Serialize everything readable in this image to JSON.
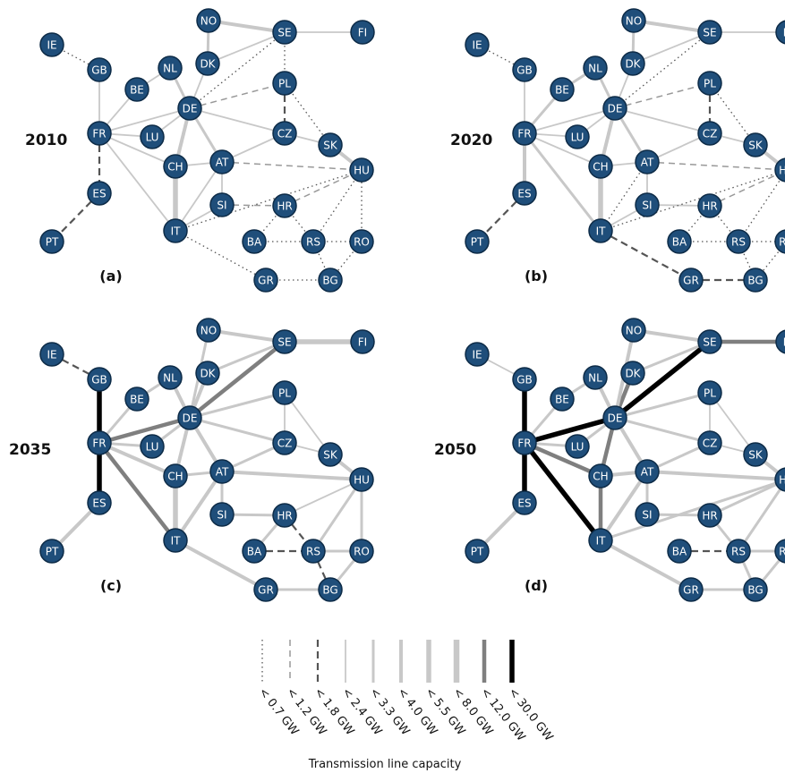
{
  "nodes": [
    "IE",
    "GB",
    "NO",
    "SE",
    "FI",
    "DK",
    "NL",
    "BE",
    "DE",
    "PL",
    "FR",
    "LU",
    "CZ",
    "SK",
    "CH",
    "AT",
    "HU",
    "ES",
    "SI",
    "HR",
    "IT",
    "BA",
    "RS",
    "RO",
    "PT",
    "GR",
    "BG"
  ],
  "panels": [
    {
      "id": "a",
      "year": "2010",
      "label": "(a)",
      "edges": [
        [
          "IE",
          "GB",
          0
        ],
        [
          "GB",
          "FR",
          3
        ],
        [
          "FR",
          "ES",
          2
        ],
        [
          "ES",
          "PT",
          2
        ],
        [
          "FR",
          "BE",
          3
        ],
        [
          "BE",
          "NL",
          3
        ],
        [
          "NL",
          "DE",
          4
        ],
        [
          "FR",
          "DE",
          3
        ],
        [
          "FR",
          "LU",
          3
        ],
        [
          "FR",
          "CH",
          3
        ],
        [
          "FR",
          "IT",
          3
        ],
        [
          "DE",
          "LU",
          3
        ],
        [
          "DE",
          "CH",
          5
        ],
        [
          "DE",
          "AT",
          4
        ],
        [
          "DE",
          "CZ",
          3
        ],
        [
          "DE",
          "PL",
          1
        ],
        [
          "DE",
          "DK",
          3
        ],
        [
          "DE",
          "SE",
          0
        ],
        [
          "NO",
          "DK",
          4
        ],
        [
          "NO",
          "SE",
          5
        ],
        [
          "DK",
          "SE",
          3
        ],
        [
          "SE",
          "FI",
          3
        ],
        [
          "SE",
          "PL",
          0
        ],
        [
          "PL",
          "CZ",
          2
        ],
        [
          "PL",
          "SK",
          0
        ],
        [
          "CZ",
          "SK",
          3
        ],
        [
          "CZ",
          "AT",
          3
        ],
        [
          "SK",
          "HU",
          5
        ],
        [
          "AT",
          "HU",
          1
        ],
        [
          "AT",
          "CH",
          3
        ],
        [
          "AT",
          "IT",
          3
        ],
        [
          "AT",
          "SI",
          3
        ],
        [
          "CH",
          "IT",
          6
        ],
        [
          "SI",
          "IT",
          3
        ],
        [
          "SI",
          "HR",
          1
        ],
        [
          "HR",
          "HU",
          1
        ],
        [
          "HR",
          "BA",
          0
        ],
        [
          "HR",
          "RS",
          0
        ],
        [
          "BA",
          "RS",
          0
        ],
        [
          "RS",
          "HU",
          0
        ],
        [
          "RS",
          "RO",
          0
        ],
        [
          "RO",
          "HU",
          0
        ],
        [
          "RS",
          "BG",
          0
        ],
        [
          "RO",
          "BG",
          0
        ],
        [
          "IT",
          "GR",
          0
        ],
        [
          "GR",
          "BG",
          0
        ],
        [
          "IT",
          "HU",
          0
        ]
      ]
    },
    {
      "id": "b",
      "year": "2020",
      "label": "(b)",
      "edges": [
        [
          "IE",
          "GB",
          0
        ],
        [
          "GB",
          "FR",
          3
        ],
        [
          "FR",
          "ES",
          5
        ],
        [
          "ES",
          "PT",
          2
        ],
        [
          "FR",
          "BE",
          4
        ],
        [
          "BE",
          "NL",
          4
        ],
        [
          "NL",
          "DE",
          4
        ],
        [
          "FR",
          "DE",
          3
        ],
        [
          "FR",
          "LU",
          3
        ],
        [
          "FR",
          "CH",
          3
        ],
        [
          "FR",
          "IT",
          4
        ],
        [
          "DE",
          "LU",
          3
        ],
        [
          "DE",
          "CH",
          5
        ],
        [
          "DE",
          "AT",
          4
        ],
        [
          "DE",
          "CZ",
          3
        ],
        [
          "DE",
          "PL",
          1
        ],
        [
          "DE",
          "DK",
          3
        ],
        [
          "DE",
          "SE",
          0
        ],
        [
          "NO",
          "DK",
          4
        ],
        [
          "NO",
          "SE",
          5
        ],
        [
          "DK",
          "SE",
          3
        ],
        [
          "SE",
          "FI",
          3
        ],
        [
          "PL",
          "CZ",
          2
        ],
        [
          "PL",
          "SK",
          0
        ],
        [
          "CZ",
          "SK",
          3
        ],
        [
          "CZ",
          "AT",
          3
        ],
        [
          "SK",
          "HU",
          5
        ],
        [
          "AT",
          "HU",
          1
        ],
        [
          "AT",
          "CH",
          3
        ],
        [
          "AT",
          "IT",
          0
        ],
        [
          "AT",
          "SI",
          3
        ],
        [
          "CH",
          "IT",
          6
        ],
        [
          "SI",
          "IT",
          3
        ],
        [
          "SI",
          "HR",
          3
        ],
        [
          "HR",
          "HU",
          1
        ],
        [
          "HR",
          "BA",
          0
        ],
        [
          "HR",
          "RS",
          0
        ],
        [
          "BA",
          "RS",
          0
        ],
        [
          "RS",
          "HU",
          0
        ],
        [
          "RS",
          "RO",
          0
        ],
        [
          "RO",
          "HU",
          0
        ],
        [
          "RS",
          "BG",
          0
        ],
        [
          "RO",
          "BG",
          0
        ],
        [
          "IT",
          "GR",
          2
        ],
        [
          "GR",
          "BG",
          2
        ],
        [
          "IT",
          "HU",
          0
        ]
      ]
    },
    {
      "id": "c",
      "year": "2035",
      "label": "(c)",
      "edges": [
        [
          "IE",
          "GB",
          2
        ],
        [
          "GB",
          "FR",
          9
        ],
        [
          "FR",
          "ES",
          9
        ],
        [
          "ES",
          "PT",
          5
        ],
        [
          "FR",
          "BE",
          4
        ],
        [
          "BE",
          "NL",
          4
        ],
        [
          "NL",
          "DE",
          5
        ],
        [
          "FR",
          "DE",
          8
        ],
        [
          "FR",
          "LU",
          4
        ],
        [
          "FR",
          "CH",
          5
        ],
        [
          "FR",
          "IT",
          8
        ],
        [
          "DE",
          "LU",
          4
        ],
        [
          "DE",
          "CH",
          5
        ],
        [
          "DE",
          "AT",
          5
        ],
        [
          "DE",
          "CZ",
          4
        ],
        [
          "DE",
          "PL",
          4
        ],
        [
          "DE",
          "DK",
          5
        ],
        [
          "DE",
          "SE",
          8
        ],
        [
          "DE",
          "NO",
          4
        ],
        [
          "NO",
          "SE",
          5
        ],
        [
          "DK",
          "SE",
          4
        ],
        [
          "SE",
          "FI",
          6
        ],
        [
          "PL",
          "CZ",
          3
        ],
        [
          "PL",
          "SK",
          3
        ],
        [
          "CZ",
          "SK",
          3
        ],
        [
          "CZ",
          "AT",
          4
        ],
        [
          "SK",
          "HU",
          5
        ],
        [
          "AT",
          "HU",
          5
        ],
        [
          "AT",
          "CH",
          4
        ],
        [
          "AT",
          "IT",
          5
        ],
        [
          "AT",
          "SI",
          4
        ],
        [
          "CH",
          "IT",
          6
        ],
        [
          "SI",
          "HR",
          4
        ],
        [
          "HR",
          "HU",
          3
        ],
        [
          "HR",
          "RS",
          2
        ],
        [
          "BA",
          "RS",
          2
        ],
        [
          "RS",
          "HU",
          4
        ],
        [
          "RS",
          "RO",
          4
        ],
        [
          "RO",
          "HU",
          4
        ],
        [
          "RS",
          "BG",
          2
        ],
        [
          "RO",
          "BG",
          4
        ],
        [
          "IT",
          "GR",
          5
        ],
        [
          "GR",
          "BG",
          4
        ],
        [
          "HR",
          "BA",
          4
        ]
      ]
    },
    {
      "id": "d",
      "year": "2050",
      "label": "(d)",
      "edges": [
        [
          "IE",
          "GB",
          3
        ],
        [
          "GB",
          "FR",
          9
        ],
        [
          "FR",
          "ES",
          9
        ],
        [
          "ES",
          "PT",
          5
        ],
        [
          "FR",
          "BE",
          4
        ],
        [
          "BE",
          "NL",
          4
        ],
        [
          "NL",
          "DE",
          5
        ],
        [
          "FR",
          "DE",
          9
        ],
        [
          "FR",
          "LU",
          4
        ],
        [
          "FR",
          "CH",
          8
        ],
        [
          "FR",
          "IT",
          9
        ],
        [
          "DE",
          "LU",
          4
        ],
        [
          "DE",
          "CH",
          8
        ],
        [
          "DE",
          "AT",
          5
        ],
        [
          "DE",
          "CZ",
          4
        ],
        [
          "DE",
          "PL",
          4
        ],
        [
          "DE",
          "DK",
          8
        ],
        [
          "DE",
          "SE",
          9
        ],
        [
          "DE",
          "NO",
          5
        ],
        [
          "NO",
          "SE",
          5
        ],
        [
          "DK",
          "SE",
          4
        ],
        [
          "SE",
          "FI",
          8
        ],
        [
          "PL",
          "CZ",
          3
        ],
        [
          "PL",
          "SK",
          3
        ],
        [
          "CZ",
          "SK",
          3
        ],
        [
          "CZ",
          "AT",
          4
        ],
        [
          "SK",
          "HU",
          5
        ],
        [
          "AT",
          "HU",
          5
        ],
        [
          "AT",
          "CH",
          5
        ],
        [
          "AT",
          "IT",
          5
        ],
        [
          "AT",
          "SI",
          4
        ],
        [
          "CH",
          "IT",
          8
        ],
        [
          "SI",
          "HR",
          4
        ],
        [
          "HR",
          "HU",
          4
        ],
        [
          "BA",
          "RS",
          2
        ],
        [
          "RS",
          "HU",
          4
        ],
        [
          "RS",
          "RO",
          4
        ],
        [
          "RO",
          "HU",
          4
        ],
        [
          "RS",
          "BG",
          4
        ],
        [
          "RO",
          "BG",
          4
        ],
        [
          "IT",
          "GR",
          5
        ],
        [
          "GR",
          "BG",
          4
        ],
        [
          "HR",
          "RS",
          4
        ],
        [
          "IT",
          "HU",
          4
        ]
      ]
    }
  ],
  "legend": {
    "title": "Transmission line capacity",
    "entries": [
      {
        "label": "< 0.7 GW"
      },
      {
        "label": "< 1.2 GW"
      },
      {
        "label": "< 1.8 GW"
      },
      {
        "label": "< 2.4 GW"
      },
      {
        "label": "< 3.3 GW"
      },
      {
        "label": "< 4.0 GW"
      },
      {
        "label": "< 5.5 GW"
      },
      {
        "label": "< 8.0 GW"
      },
      {
        "label": "< 12.0 GW"
      },
      {
        "label": "< 30.0 GW"
      }
    ]
  },
  "colors": {
    "node_fill": "#1f4e7a",
    "node_stroke": "#0d2b47",
    "node_text": "#ffffff",
    "line_light": "#c8c8c8",
    "line_dashed": "#999999",
    "line_dark_dashed": "#555555",
    "line_grey": "#7f7f7f",
    "line_black": "#000000"
  }
}
